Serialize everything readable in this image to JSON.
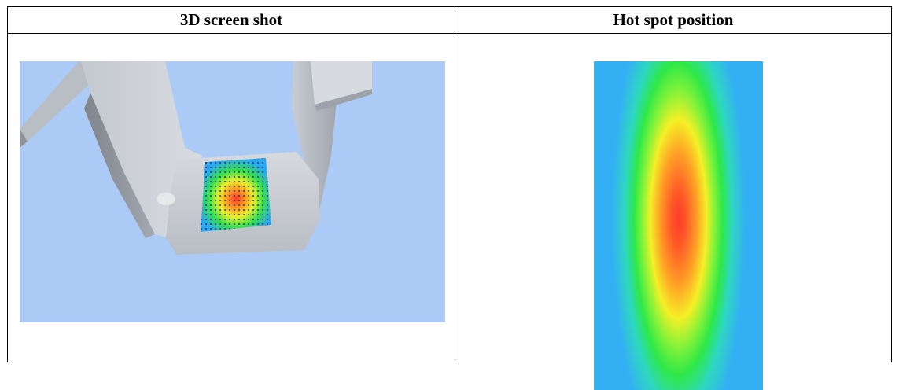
{
  "table": {
    "headers": [
      "3D screen shot",
      "Hot spot position"
    ]
  },
  "images": {
    "screenshot_3d": "3d-model-render",
    "hotspot_map": "hotspot-heatmap"
  },
  "colors": {
    "background_blue": "#abcbf6",
    "model_gray": "#c9cdd4",
    "heat_hot": "#ff3a2a",
    "heat_warm": "#ffee22",
    "heat_mid": "#33ee33",
    "heat_cool": "#33bff4"
  }
}
